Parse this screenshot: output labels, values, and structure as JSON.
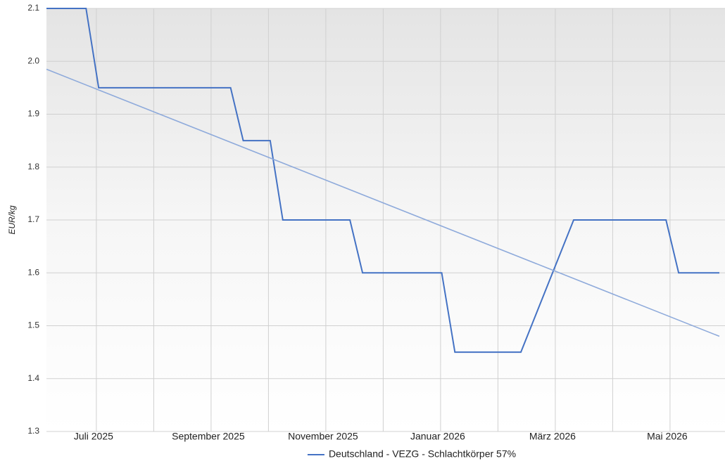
{
  "chart_data": {
    "type": "line",
    "y_label": "EUR/kg",
    "ylim": [
      1.3,
      2.1
    ],
    "yticks": [
      1.3,
      1.4,
      1.5,
      1.6,
      1.7,
      1.8,
      1.9,
      {
        "value": 2,
        "label": "2.0"
      },
      2.1
    ],
    "xlim": [
      6.13,
      17.86
    ],
    "xticks": [
      {
        "value": 7,
        "label": "Juli 2025"
      },
      {
        "value": 9,
        "label": "September 2025"
      },
      {
        "value": 11,
        "label": "November 2025"
      },
      {
        "value": 13,
        "label": "Januar 2026"
      },
      {
        "value": 15,
        "label": "März 2026"
      },
      {
        "value": 17,
        "label": "Mai 2026"
      }
    ],
    "x_minor_ticks": [
      8,
      10,
      12,
      14,
      16
    ],
    "grid": true,
    "legend": "bottom",
    "series": [
      {
        "name": "Deutschland - VEZG - Schlachtkörper 57%",
        "color": "#4472c4",
        "x": [
          6.13,
          6.82,
          7.04,
          9.34,
          9.56,
          10.03,
          10.25,
          11.42,
          11.64,
          13.02,
          13.25,
          14.4,
          15.32,
          16.93,
          17.15,
          17.86
        ],
        "values": [
          2.1,
          2.1,
          1.95,
          1.95,
          1.85,
          1.85,
          1.7,
          1.7,
          1.6,
          1.6,
          1.45,
          1.45,
          1.7,
          1.7,
          1.6,
          1.6
        ]
      },
      {
        "color": "#8eaadb",
        "x": [
          6.13,
          17.86
        ],
        "values": [
          1.985,
          1.48
        ]
      }
    ]
  }
}
